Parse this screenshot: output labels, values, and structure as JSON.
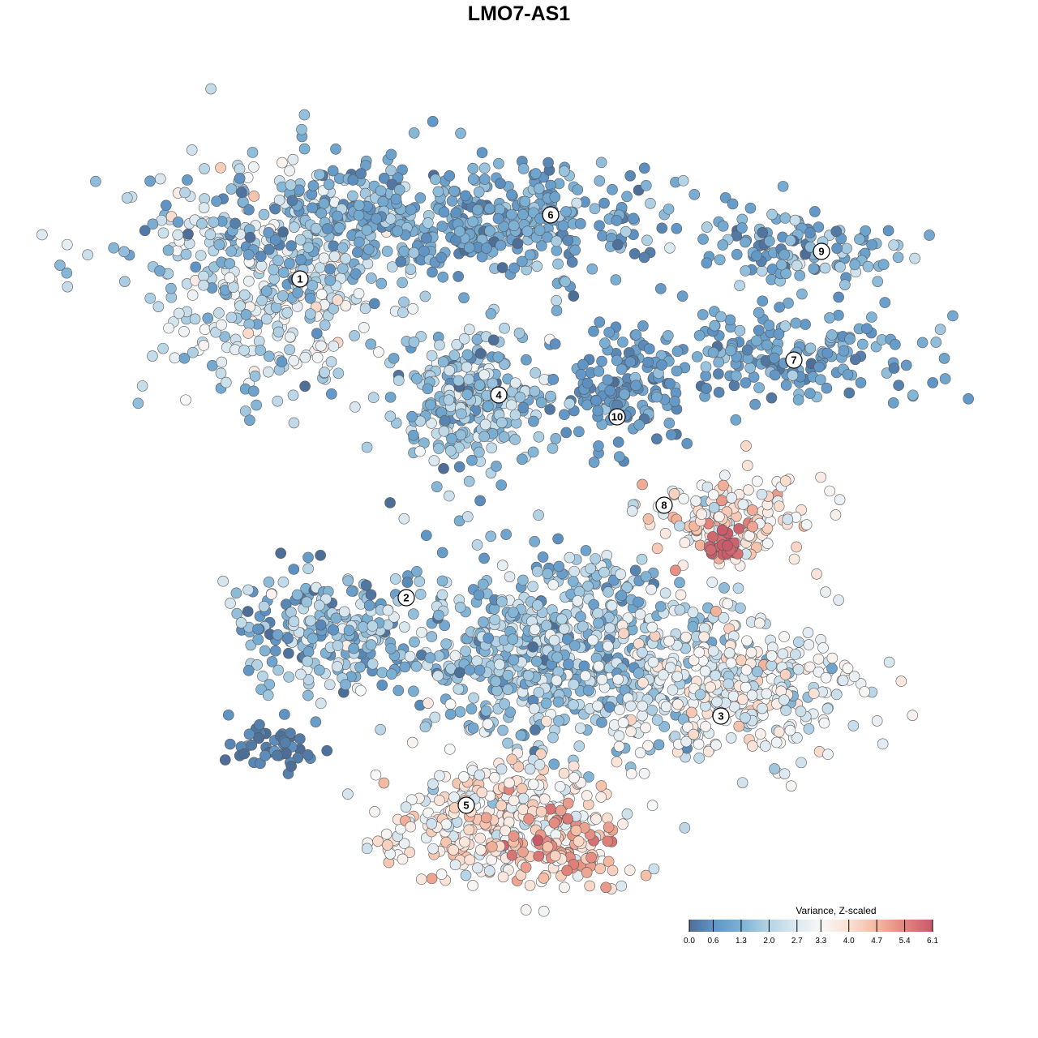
{
  "chart_data": {
    "type": "scatter",
    "title": "LMO7-AS1",
    "xlabel": "",
    "ylabel": "",
    "xlim": [
      -45,
      50
    ],
    "ylim": [
      -45,
      45
    ],
    "grid": false,
    "legend": {
      "title": "Variance, Z-scaled",
      "placement": "bottom-right",
      "ticks": [
        "0.0",
        "0.6",
        "1.3",
        "2.0",
        "2.7",
        "3.3",
        "4.0",
        "4.7",
        "5.4",
        "6.1"
      ],
      "tick_values": [
        0.0,
        0.6,
        1.3,
        2.0,
        2.7,
        3.3,
        4.0,
        4.7,
        5.4,
        6.1
      ],
      "colors": [
        "#4d6e97",
        "#5f95c6",
        "#7db1d4",
        "#b5d4e6",
        "#dde9f0",
        "#f7f7f7",
        "#fbe0d3",
        "#f4b9a0",
        "#e2857c",
        "#c85a6a"
      ]
    },
    "clusters": [
      {
        "label": "1",
        "center": [
          -31,
          30
        ],
        "spread": [
          10,
          9
        ],
        "n": 420,
        "mean": 2.3,
        "sd": 0.8,
        "label_at": [
          -27,
          29.6
        ]
      },
      {
        "label": "6",
        "center": [
          -8,
          37
        ],
        "spread": [
          19,
          4.5
        ],
        "n": 520,
        "mean": 1.0,
        "sd": 0.5,
        "label_at": [
          3.9,
          37.5
        ]
      },
      {
        "label": "9",
        "center": [
          35,
          33
        ],
        "spread": [
          6.5,
          2.8
        ],
        "n": 110,
        "mean": 1.2,
        "sd": 0.6,
        "label_at": [
          37.3,
          33
        ]
      },
      {
        "label": "7",
        "center": [
          32,
          20
        ],
        "spread": [
          12,
          3.5
        ],
        "n": 200,
        "mean": 0.9,
        "sd": 0.4,
        "label_at": [
          33.9,
          19.6
        ]
      },
      {
        "label": "4",
        "center": [
          -6,
          15
        ],
        "spread": [
          6,
          5.5
        ],
        "n": 260,
        "mean": 1.7,
        "sd": 0.7,
        "label_at": [
          -2.5,
          15.3
        ]
      },
      {
        "label": "10",
        "center": [
          12,
          16
        ],
        "spread": [
          5,
          4.5
        ],
        "n": 120,
        "mean": 0.8,
        "sd": 0.4,
        "label_at": [
          12.1,
          12.6
        ]
      },
      {
        "label": "8",
        "center": [
          26,
          0
        ],
        "spread": [
          6,
          3.5
        ],
        "n": 150,
        "mean": 3.8,
        "sd": 0.8,
        "label_at": [
          17.9,
          1.7
        ]
      },
      {
        "label": "",
        "center": [
          25.5,
          -3.3
        ],
        "spread": [
          1.5,
          1
        ],
        "n": 30,
        "mean": 6.0,
        "sd": 0.1,
        "label_at": null
      },
      {
        "label": "2",
        "center": [
          -24,
          -14
        ],
        "spread": [
          7,
          4.5
        ],
        "n": 220,
        "mean": 1.4,
        "sd": 0.8,
        "label_at": [
          -13.9,
          -9.7
        ]
      },
      {
        "label": "",
        "center": [
          -30,
          -28
        ],
        "spread": [
          3.5,
          1.8
        ],
        "n": 45,
        "mean": 0.3,
        "sd": 0.2,
        "label_at": null
      },
      {
        "label": "",
        "center": [
          4,
          -16
        ],
        "spread": [
          12,
          7.5
        ],
        "n": 650,
        "mean": 1.6,
        "sd": 0.7,
        "label_at": null
      },
      {
        "label": "3",
        "center": [
          26,
          -21
        ],
        "spread": [
          10,
          5.5
        ],
        "n": 380,
        "mean": 3.0,
        "sd": 0.7,
        "label_at": [
          24.9,
          -24.3
        ]
      },
      {
        "label": "5",
        "center": [
          -2,
          -37
        ],
        "spread": [
          9.5,
          5
        ],
        "n": 340,
        "mean": 3.6,
        "sd": 0.8,
        "label_at": [
          -6.5,
          -35.3
        ]
      },
      {
        "label": "",
        "center": [
          5,
          -40
        ],
        "spread": [
          5,
          2.5
        ],
        "n": 70,
        "mean": 4.9,
        "sd": 0.5,
        "label_at": null
      }
    ]
  }
}
